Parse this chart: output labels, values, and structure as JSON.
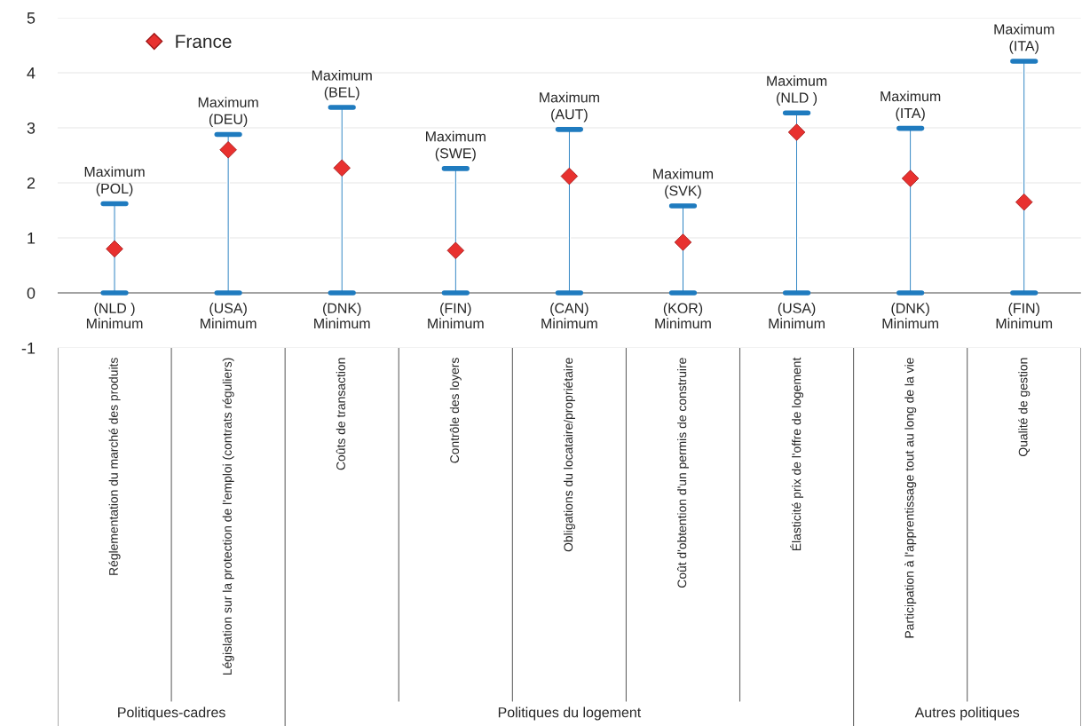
{
  "chart_data": {
    "type": "scatter",
    "categories": [
      "Réglementation du marché des produits",
      "Législation sur la protection de l'emploi (contrats réguliers)",
      "Coûts de transaction",
      "Contrôle des loyers",
      "Obligations du locataire/propriétaire",
      "Coût d'obtention d'un permis de construire",
      "Élasticité prix de l'offre de logement",
      "Participation à l'apprentissage tout au long de la vie",
      "Qualité de gestion"
    ],
    "series": [
      {
        "type": "bar",
        "color": "#1f7bbf",
        "values": [
          1.62,
          2.88,
          3.37,
          2.26,
          2.97,
          1.58,
          3.27,
          2.99,
          4.21
        ]
      },
      {
        "name": "France",
        "color": "#e8312f",
        "values": [
          0.8,
          2.6,
          2.27,
          0.77,
          2.12,
          0.92,
          2.92,
          2.08,
          1.65
        ]
      }
    ],
    "ylim": [
      -1,
      5
    ],
    "yticks": [
      -1,
      0,
      1,
      2,
      3,
      4,
      5
    ],
    "grid": "y",
    "legend": "top left",
    "marker": "diamond",
    "annotations": [
      {
        "text": "Maximum\n(POL)",
        "x": "Réglementation du marché des produits",
        "y": 1.62
      },
      {
        "text": "Maximum\n(DEU)",
        "x": "Législation sur la protection de l'emploi (contrats réguliers)",
        "y": 2.88
      },
      {
        "text": "Maximum\n(BEL)",
        "x": "Coûts de transaction",
        "y": 3.37
      },
      {
        "text": "Maximum\n(SWE)",
        "x": "Contrôle des loyers",
        "y": 2.26
      },
      {
        "text": "Maximum\n(AUT)",
        "x": "Obligations du locataire/propriétaire",
        "y": 2.97
      },
      {
        "text": "Maximum\n(SVK)",
        "x": "Coût d'obtention d'un permis de construire",
        "y": 1.58
      },
      {
        "text": "Maximum\n(NLD )",
        "x": "Élasticité prix de l'offre de logement",
        "y": 3.27
      },
      {
        "text": "Maximum\n(ITA)",
        "x": "Participation à l'apprentissage tout au long de la vie",
        "y": 2.99
      },
      {
        "text": "Maximum\n(ITA)",
        "x": "Qualité de gestion",
        "y": 4.21
      },
      {
        "text": "(NLD )\nMinimum",
        "x": "Réglementation du marché des produits",
        "y": 0
      },
      {
        "text": "(USA)\nMinimum",
        "x": "Législation sur la protection de l'emploi (contrats réguliers)",
        "y": 0
      },
      {
        "text": "(DNK)\nMinimum",
        "x": "Coûts de transaction",
        "y": 0
      },
      {
        "text": "(FIN)\nMinimum",
        "x": "Contrôle des loyers",
        "y": 0
      },
      {
        "text": "(CAN)\nMinimum",
        "x": "Obligations du locataire/propriétaire",
        "y": 0
      },
      {
        "text": "(KOR)\nMinimum",
        "x": "Coût d'obtention d'un permis de construire",
        "y": 0
      },
      {
        "text": "(USA)\nMinimum",
        "x": "Élasticité prix de l'offre de logement",
        "y": 0
      },
      {
        "text": "(DNK)\nMinimum",
        "x": "Participation à l'apprentissage tout au long de la vie",
        "y": 0
      },
      {
        "text": "(FIN)\nMinimum",
        "x": "Qualité de gestion",
        "y": 0
      },
      "Politiques-cadres",
      "Politiques du logement",
      "Autres politiques"
    ]
  }
}
